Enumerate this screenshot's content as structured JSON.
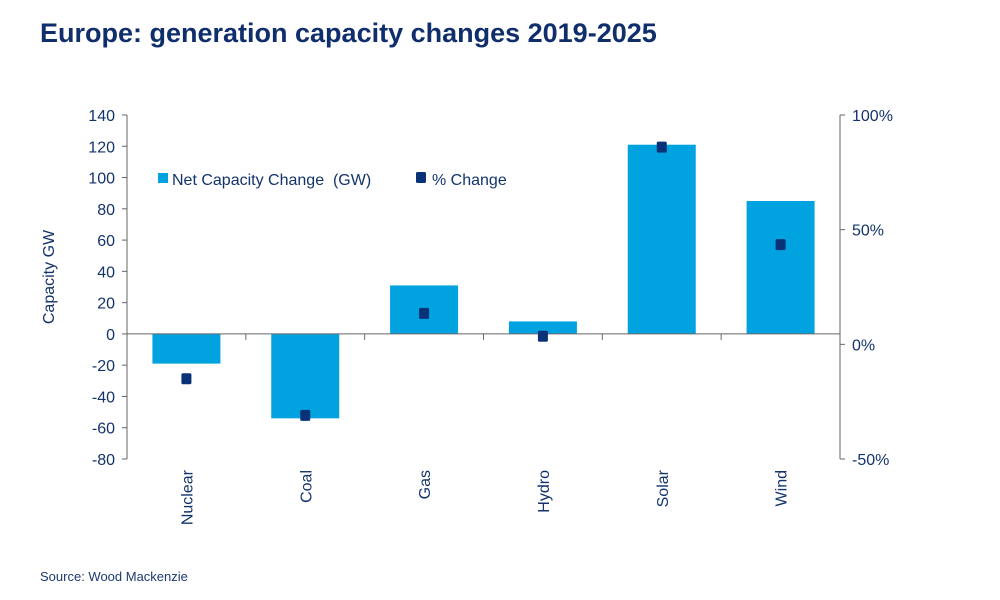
{
  "title": "Europe: generation capacity changes 2019-2025",
  "source": "Source: Wood Mackenzie",
  "colors": {
    "bar": "#00a3e0",
    "marker": "#0a3278",
    "text": "#13336b",
    "axis": "#666666"
  },
  "chart_data": {
    "type": "bar",
    "title": "Europe: generation capacity changes 2019-2025",
    "categories": [
      "Nuclear",
      "Coal",
      "Gas",
      "Hydro",
      "Solar",
      "Wind"
    ],
    "series": [
      {
        "name": "Net Capacity Change  (GW)",
        "type": "bar",
        "axis": "left",
        "values": [
          -19,
          -54,
          31,
          8,
          121,
          85
        ]
      },
      {
        "name": "% Change",
        "type": "scatter",
        "axis": "right",
        "values": [
          -15,
          -31,
          13.5,
          3.5,
          86,
          43.5
        ]
      }
    ],
    "ylabel": "Capacity GW",
    "ylim": [
      -80,
      140
    ],
    "yticks": [
      "140",
      "120",
      "100",
      "80",
      "60",
      "40",
      "20",
      "0",
      "-20",
      "-40",
      "-60",
      "-80"
    ],
    "y2lim": [
      -50,
      100
    ],
    "y2ticks": [
      "100%",
      "50%",
      "0%",
      "-50%"
    ],
    "legend": "top-left",
    "grid": false
  }
}
